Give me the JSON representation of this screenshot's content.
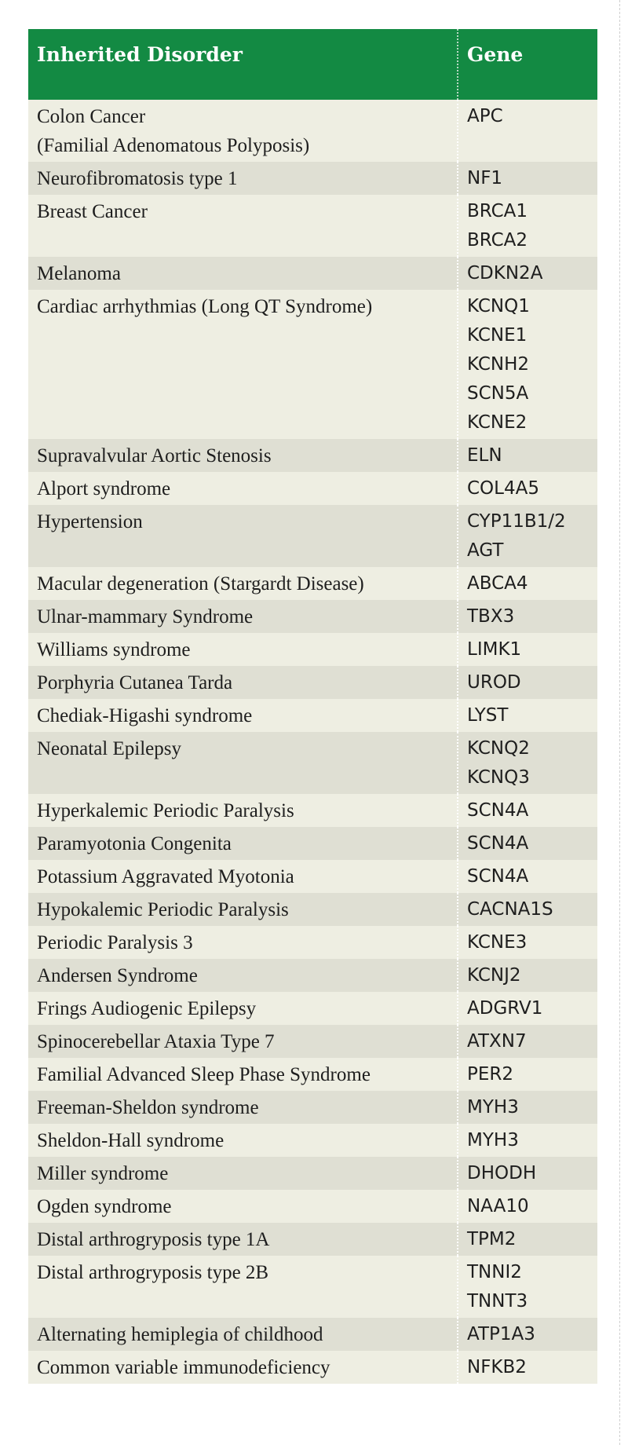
{
  "table": {
    "headers": {
      "disorder": "Inherited Disorder",
      "gene": "Gene"
    },
    "rows": [
      {
        "disorder": [
          "Colon Cancer",
          "(Familial Adenomatous Polyposis)"
        ],
        "genes": [
          "APC"
        ]
      },
      {
        "disorder": [
          "Neurofibromatosis type 1"
        ],
        "genes": [
          "NF1"
        ]
      },
      {
        "disorder": [
          "Breast Cancer"
        ],
        "genes": [
          "BRCA1",
          "BRCA2"
        ]
      },
      {
        "disorder": [
          "Melanoma"
        ],
        "genes": [
          "CDKN2A"
        ]
      },
      {
        "disorder": [
          "Cardiac arrhythmias (Long QT Syndrome)"
        ],
        "genes": [
          "KCNQ1",
          "KCNE1",
          "KCNH2",
          "SCN5A",
          "KCNE2"
        ]
      },
      {
        "disorder": [
          "Supravalvular Aortic Stenosis"
        ],
        "genes": [
          "ELN"
        ]
      },
      {
        "disorder": [
          "Alport syndrome"
        ],
        "genes": [
          "COL4A5"
        ]
      },
      {
        "disorder": [
          "Hypertension"
        ],
        "genes": [
          "CYP11B1/2",
          "AGT"
        ]
      },
      {
        "disorder": [
          "Macular degeneration (Stargardt Disease)"
        ],
        "genes": [
          "ABCA4"
        ]
      },
      {
        "disorder": [
          "Ulnar-mammary Syndrome"
        ],
        "genes": [
          "TBX3"
        ]
      },
      {
        "disorder": [
          "Williams syndrome"
        ],
        "genes": [
          "LIMK1"
        ]
      },
      {
        "disorder": [
          "Porphyria Cutanea Tarda"
        ],
        "genes": [
          "UROD"
        ]
      },
      {
        "disorder": [
          "Chediak-Higashi syndrome"
        ],
        "genes": [
          "LYST"
        ]
      },
      {
        "disorder": [
          "Neonatal Epilepsy"
        ],
        "genes": [
          "KCNQ2",
          "KCNQ3"
        ]
      },
      {
        "disorder": [
          "Hyperkalemic Periodic Paralysis"
        ],
        "genes": [
          "SCN4A"
        ]
      },
      {
        "disorder": [
          "Paramyotonia Congenita"
        ],
        "genes": [
          "SCN4A"
        ]
      },
      {
        "disorder": [
          "Potassium Aggravated Myotonia"
        ],
        "genes": [
          "SCN4A"
        ]
      },
      {
        "disorder": [
          "Hypokalemic Periodic Paralysis"
        ],
        "genes": [
          "CACNA1S"
        ]
      },
      {
        "disorder": [
          "Periodic Paralysis 3"
        ],
        "genes": [
          "KCNE3"
        ]
      },
      {
        "disorder": [
          "Andersen Syndrome"
        ],
        "genes": [
          "KCNJ2"
        ]
      },
      {
        "disorder": [
          "Frings Audiogenic Epilepsy"
        ],
        "genes": [
          "ADGRV1"
        ]
      },
      {
        "disorder": [
          "Spinocerebellar Ataxia Type 7"
        ],
        "genes": [
          "ATXN7"
        ]
      },
      {
        "disorder": [
          "Familial Advanced Sleep Phase Syndrome"
        ],
        "genes": [
          "PER2"
        ]
      },
      {
        "disorder": [
          "Freeman-Sheldon syndrome"
        ],
        "genes": [
          "MYH3"
        ]
      },
      {
        "disorder": [
          "Sheldon-Hall syndrome"
        ],
        "genes": [
          "MYH3"
        ]
      },
      {
        "disorder": [
          "Miller syndrome"
        ],
        "genes": [
          "DHODH"
        ]
      },
      {
        "disorder": [
          "Ogden syndrome"
        ],
        "genes": [
          "NAA10"
        ]
      },
      {
        "disorder": [
          "Distal arthrogryposis type 1A"
        ],
        "genes": [
          "TPM2"
        ]
      },
      {
        "disorder": [
          "Distal arthrogryposis type 2B"
        ],
        "genes": [
          "TNNI2",
          "TNNT3"
        ]
      },
      {
        "disorder": [
          "Alternating hemiplegia of childhood"
        ],
        "genes": [
          "ATP1A3"
        ]
      },
      {
        "disorder": [
          "Common variable immunodeficiency"
        ],
        "genes": [
          "NFKB2"
        ]
      }
    ]
  },
  "colors": {
    "header_bg": "#138a43",
    "row_light": "#eeeee2",
    "row_dark": "#dfdfd3"
  }
}
